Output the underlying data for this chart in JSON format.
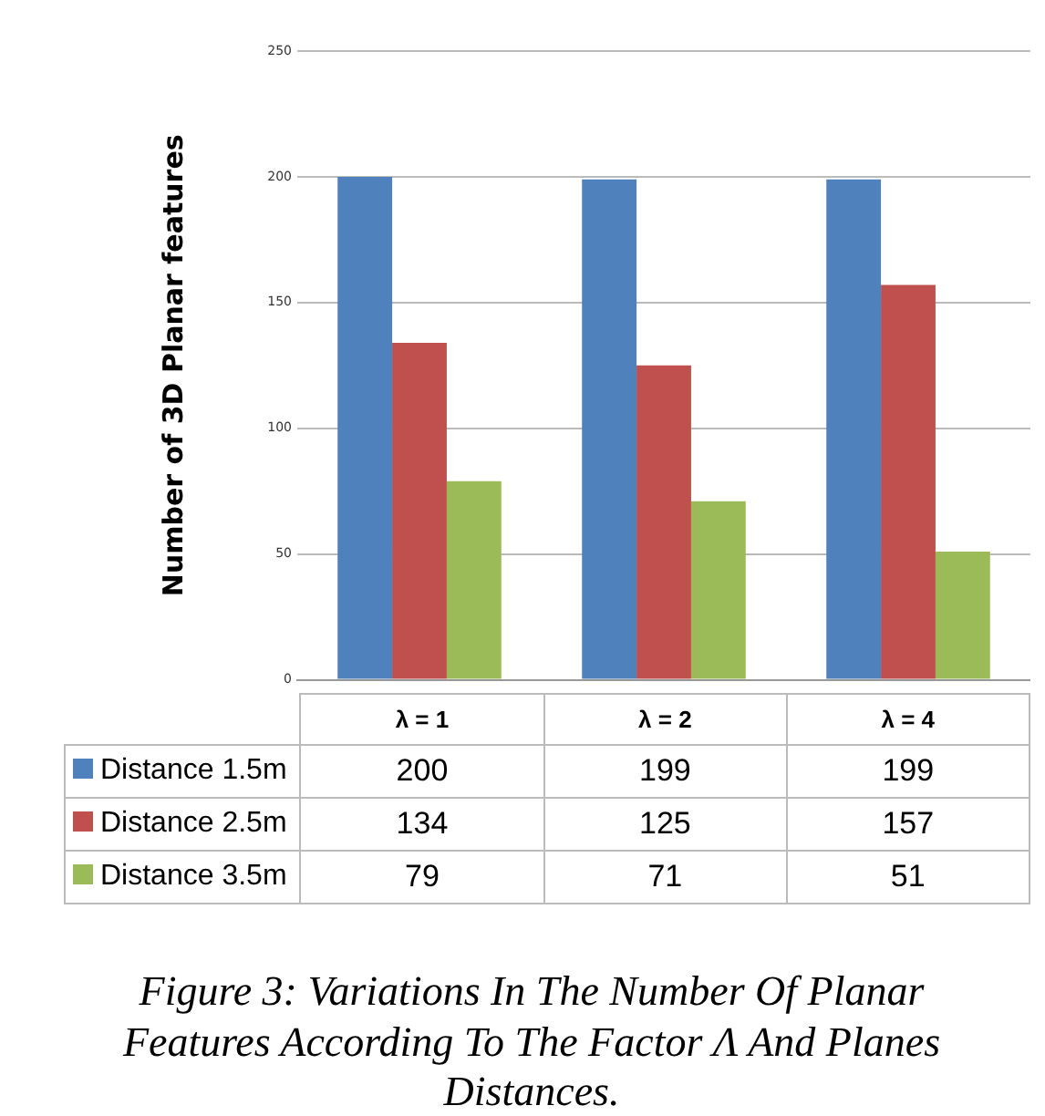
{
  "chart_data": {
    "type": "bar",
    "ylabel": "Number of 3D Planar features",
    "categories": [
      "λ = 1",
      "λ = 2",
      "λ = 4"
    ],
    "series": [
      {
        "name": "Distance 1.5m",
        "color": "#4f81bd",
        "values": [
          200,
          199,
          199
        ]
      },
      {
        "name": "Distance 2.5m",
        "color": "#c0504d",
        "values": [
          134,
          125,
          157
        ]
      },
      {
        "name": "Distance 3.5m",
        "color": "#9bbb59",
        "values": [
          79,
          71,
          51
        ]
      }
    ],
    "ylim": [
      0,
      250
    ],
    "yticks": [
      0,
      50,
      100,
      150,
      200,
      250
    ],
    "grid": "y",
    "legend": "bottom",
    "data_labels": true,
    "annotations": [
      "Figure 3: Variations In The Number Of Planar Features According To The Factor Λ And Planes Distances."
    ]
  }
}
